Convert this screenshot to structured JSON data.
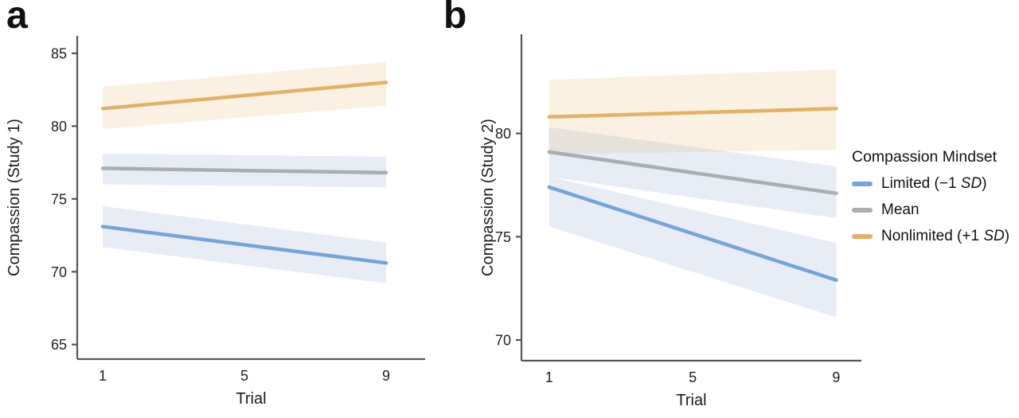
{
  "figure": {
    "description": "Two-panel line figure of compassion ratings across trials by compassion mindset condition"
  },
  "colors": {
    "axis": "#53565b",
    "text": "#1b1c1e",
    "limited_line": "#74a4d8",
    "mean_line": "#a9adb4",
    "nonlimited_line": "#e2b169",
    "limited_band": "rgba(134,161,205,0.20)",
    "mean_band": "rgba(134,161,205,0.20)",
    "nonlimited_band": "rgba(230,185,108,0.20)"
  },
  "legend": {
    "title": "Compassion Mindset",
    "items": [
      {
        "label": "Limited (−1 SD)",
        "prefix": "Limited (−1 ",
        "italic": "SD",
        "suffix": ")",
        "color": "#74a4d8"
      },
      {
        "label": "Mean",
        "prefix": "Mean",
        "italic": "",
        "suffix": "",
        "color": "#a9adb4"
      },
      {
        "label": "Nonlimited (+1 SD)",
        "prefix": "Nonlimited (+1 ",
        "italic": "SD",
        "suffix": ")",
        "color": "#e2b169"
      }
    ]
  },
  "chart_data": [
    {
      "type": "line",
      "panel_label": "a",
      "title": "",
      "xlabel": "Trial",
      "ylabel": "Compassion (Study 1)",
      "x": [
        1,
        9
      ],
      "xticks": [
        1,
        5,
        9
      ],
      "yticks": [
        65,
        70,
        75,
        80,
        85
      ],
      "xlim": [
        0.28,
        10.1
      ],
      "ylim": [
        64.0,
        86.2
      ],
      "grid": false,
      "legend_position": "none",
      "series": [
        {
          "id": "limited",
          "name": "Limited (−1 SD)",
          "color": "#74a4d8",
          "band_color": "rgba(134,161,205,0.20)",
          "values": [
            73.1,
            70.6
          ],
          "band_lower": [
            71.7,
            69.2
          ],
          "band_upper": [
            74.5,
            72.0
          ]
        },
        {
          "id": "mean",
          "name": "Mean",
          "color": "#a9adb4",
          "band_color": "rgba(134,161,205,0.20)",
          "values": [
            77.1,
            76.8
          ],
          "band_lower": [
            76.0,
            75.8
          ],
          "band_upper": [
            78.1,
            77.9
          ]
        },
        {
          "id": "nonlimited",
          "name": "Nonlimited (+1 SD)",
          "color": "#e2b169",
          "band_color": "rgba(230,185,108,0.20)",
          "values": [
            81.2,
            83.0
          ],
          "band_lower": [
            79.8,
            81.4
          ],
          "band_upper": [
            82.7,
            84.4
          ]
        }
      ]
    },
    {
      "type": "line",
      "panel_label": "b",
      "title": "",
      "xlabel": "Trial",
      "ylabel": "Compassion (Study 2)",
      "x": [
        1,
        9
      ],
      "xticks": [
        1,
        5,
        9
      ],
      "yticks": [
        70,
        75,
        80
      ],
      "xlim": [
        0.23,
        9.7
      ],
      "ylim": [
        69.0,
        84.8
      ],
      "grid": false,
      "legend_position": "right",
      "series": [
        {
          "id": "limited",
          "name": "Limited (−1 SD)",
          "color": "#74a4d8",
          "band_color": "rgba(134,161,205,0.20)",
          "values": [
            77.4,
            72.9
          ],
          "band_lower": [
            75.5,
            71.1
          ],
          "band_upper": [
            77.9,
            74.7
          ]
        },
        {
          "id": "mean",
          "name": "Mean",
          "color": "#a9adb4",
          "band_color": "rgba(134,161,205,0.20)",
          "values": [
            79.1,
            77.1
          ],
          "band_lower": [
            77.9,
            75.9
          ],
          "band_upper": [
            80.3,
            78.4
          ]
        },
        {
          "id": "nonlimited",
          "name": "Nonlimited (+1 SD)",
          "color": "#e2b169",
          "band_color": "rgba(230,185,108,0.20)",
          "values": [
            80.8,
            81.2
          ],
          "band_lower": [
            79.0,
            79.2
          ],
          "band_upper": [
            82.6,
            83.1
          ]
        }
      ]
    }
  ]
}
